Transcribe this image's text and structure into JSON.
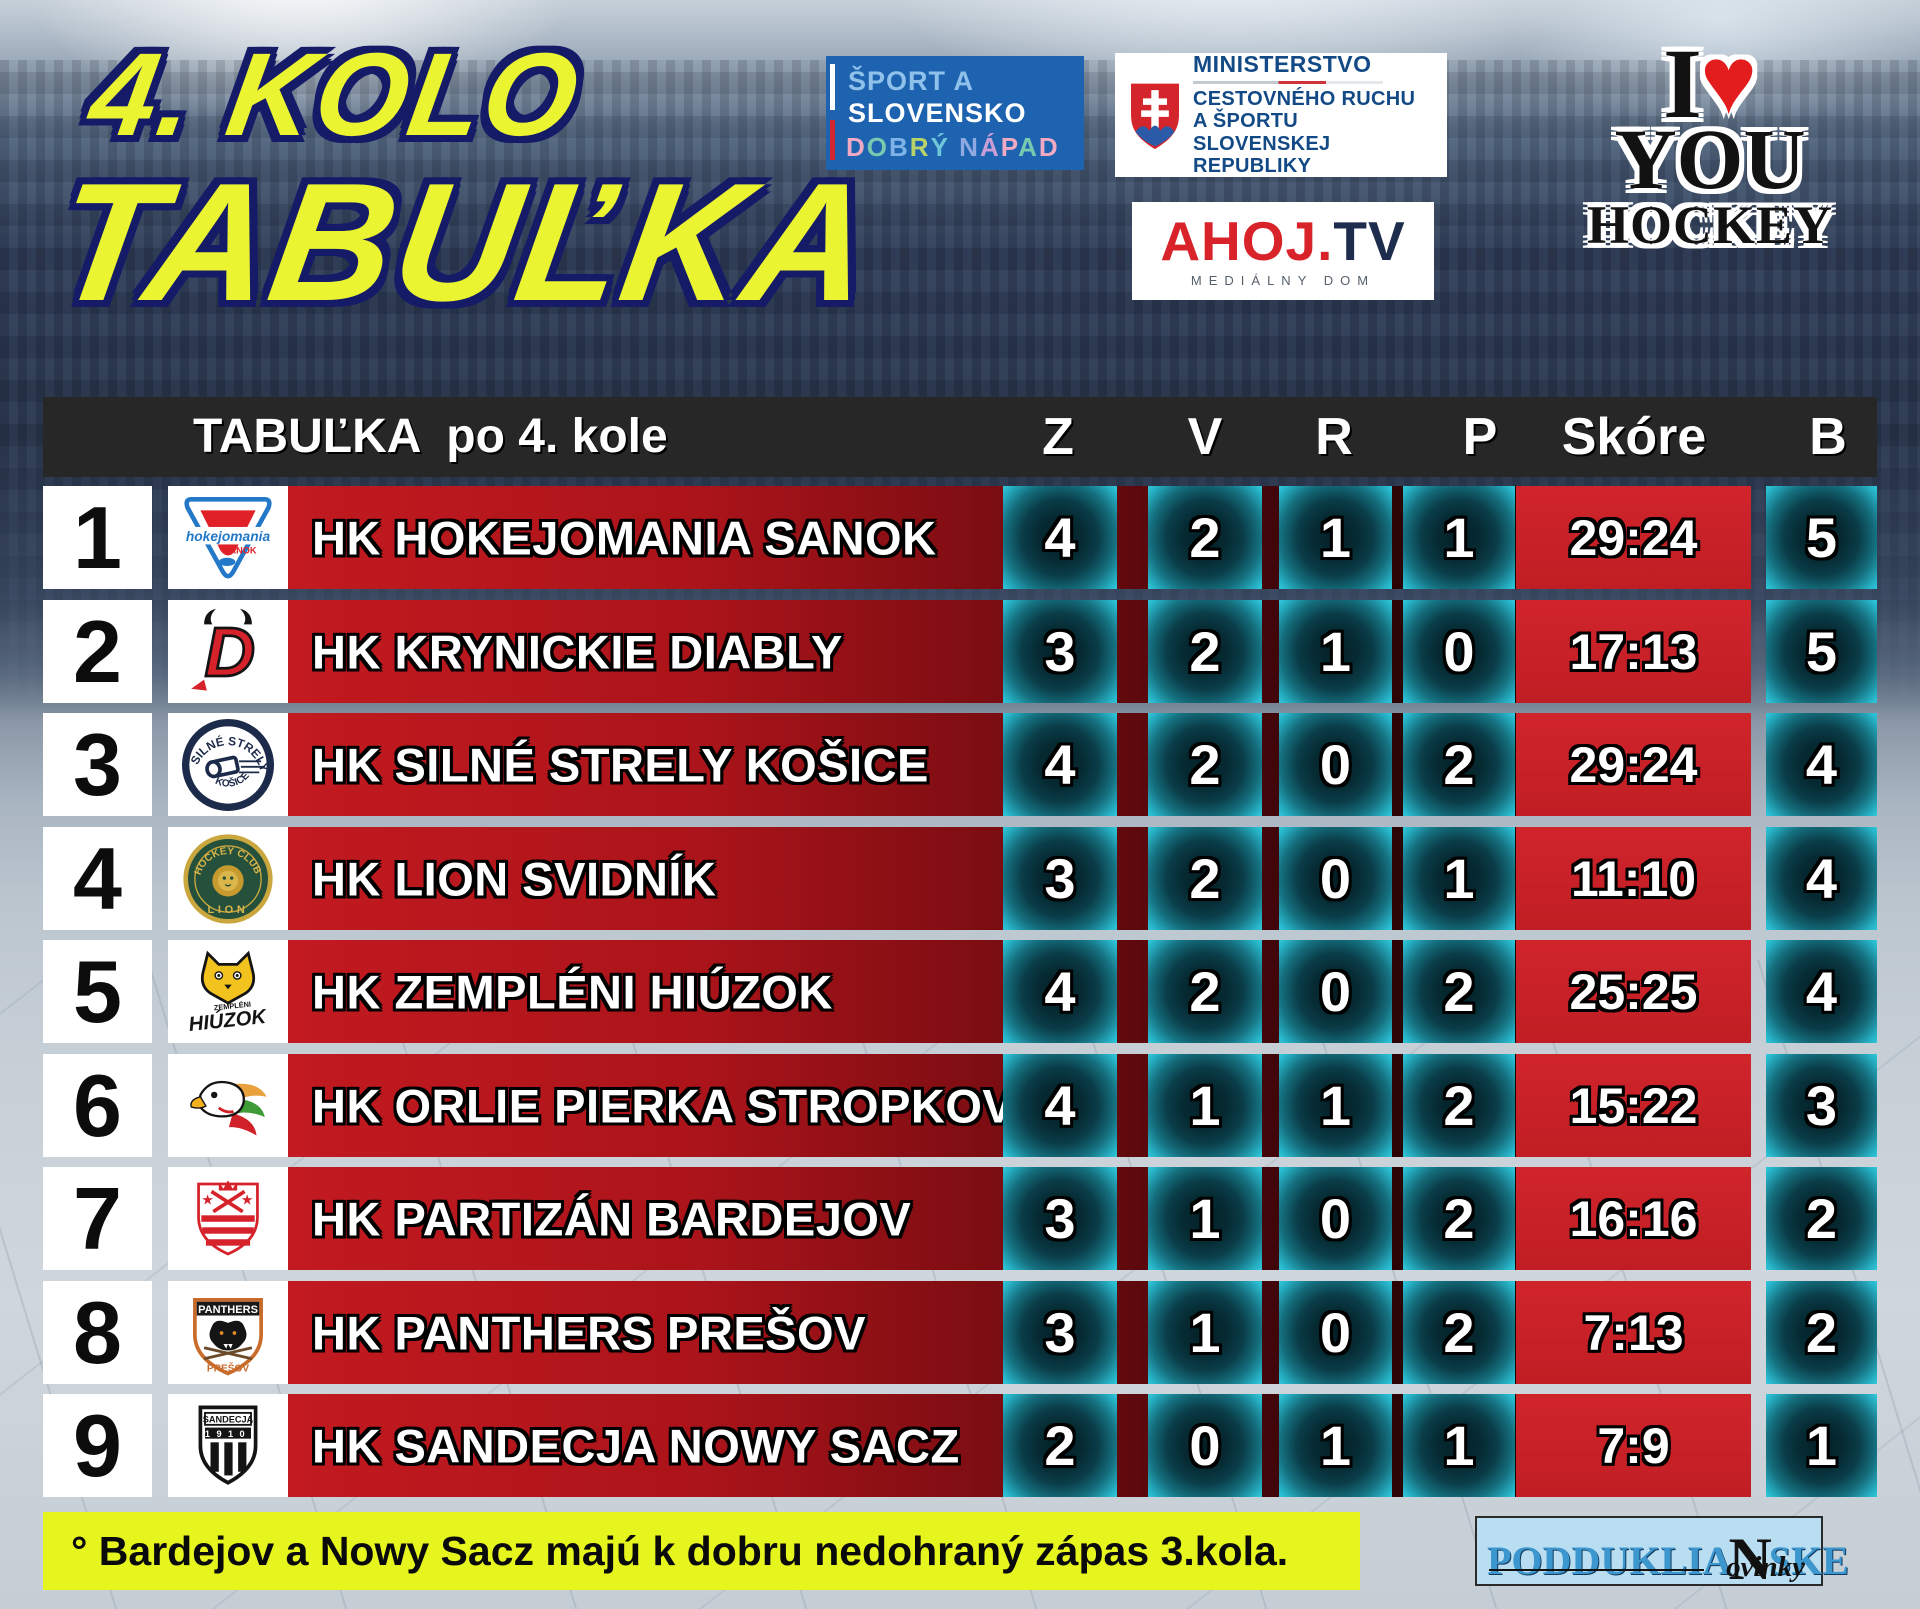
{
  "title": {
    "kolo": "4. KOLO",
    "tabulka": "TABUĽKA"
  },
  "sponsors": {
    "sport_slovensko": {
      "top": "ŠPORT A",
      "mid": "SLOVENSKO",
      "bottom": "DOBRÝ NÁPAD"
    },
    "ministry": {
      "title": "MINISTERSTVO",
      "line2": "CESTOVNÉHO RUCHU",
      "line3": "A ŠPORTU",
      "line4": "SLOVENSKEJ REPUBLIKY"
    },
    "ahoj": {
      "red": "AHOJ.",
      "dark": "TV",
      "sub": "MEDIÁLNY DOM"
    },
    "ily": {
      "i": "I",
      "heart": "♥",
      "you": "YOU",
      "hockey": "HOCKEY"
    },
    "podduklianske": {
      "pre": "PODDUKLIA",
      "n": "N",
      "post": "SKE",
      "script": "ovinky"
    }
  },
  "table": {
    "title": "TABUĽKA  po 4. kole",
    "columns": [
      "Z",
      "V",
      "R",
      "P",
      "Skóre",
      "B"
    ],
    "rows": [
      {
        "rank": "1",
        "team": "HK HOKEJOMANIA SANOK",
        "logo": "hokejomania",
        "z": "4",
        "v": "2",
        "r": "1",
        "p": "1",
        "score": "29:24",
        "b": "5"
      },
      {
        "rank": "2",
        "team": "HK KRYNICKIE DIABLY",
        "logo": "diably",
        "z": "3",
        "v": "2",
        "r": "1",
        "p": "0",
        "score": "17:13",
        "b": "5"
      },
      {
        "rank": "3",
        "team": "HK SILNÉ STRELY KOŠICE",
        "logo": "strely",
        "z": "4",
        "v": "2",
        "r": "0",
        "p": "2",
        "score": "29:24",
        "b": "4"
      },
      {
        "rank": "4",
        "team": "HK LION SVIDNÍK",
        "logo": "lion",
        "z": "3",
        "v": "2",
        "r": "0",
        "p": "1",
        "score": "11:10",
        "b": "4"
      },
      {
        "rank": "5",
        "team": "HK ZEMPLÉNI HIÚZOK",
        "logo": "hiuzok",
        "z": "4",
        "v": "2",
        "r": "0",
        "p": "2",
        "score": "25:25",
        "b": "4"
      },
      {
        "rank": "6",
        "team": "HK ORLIE PIERKA STROPKOV",
        "logo": "orlie",
        "z": "4",
        "v": "1",
        "r": "1",
        "p": "2",
        "score": "15:22",
        "b": "3"
      },
      {
        "rank": "7",
        "team": "HK PARTIZÁN BARDEJOV",
        "logo": "partizan",
        "z": "3",
        "v": "1",
        "r": "0",
        "p": "2",
        "score": "16:16",
        "b": "2"
      },
      {
        "rank": "8",
        "team": "HK PANTHERS PREŠOV",
        "logo": "panthers",
        "z": "3",
        "v": "1",
        "r": "0",
        "p": "2",
        "score": "7:13",
        "b": "2"
      },
      {
        "rank": "9",
        "team": "HK SANDECJA NOWY SACZ",
        "logo": "sandecja",
        "z": "2",
        "v": "0",
        "r": "1",
        "p": "1",
        "score": "7:9",
        "b": "1"
      }
    ]
  },
  "footer": {
    "note": "° Bardejov a Nowy Sacz majú k dobru nedohraný zápas 3.kola."
  },
  "colors": {
    "title_yellow": "#ebf431",
    "title_outline": "#151b67",
    "header_dark": "#272727",
    "row_red": "#b5161c",
    "cell_teal": "#2fc3d8",
    "score_red": "#cd2127",
    "footer_yellow": "#e7f51f"
  }
}
